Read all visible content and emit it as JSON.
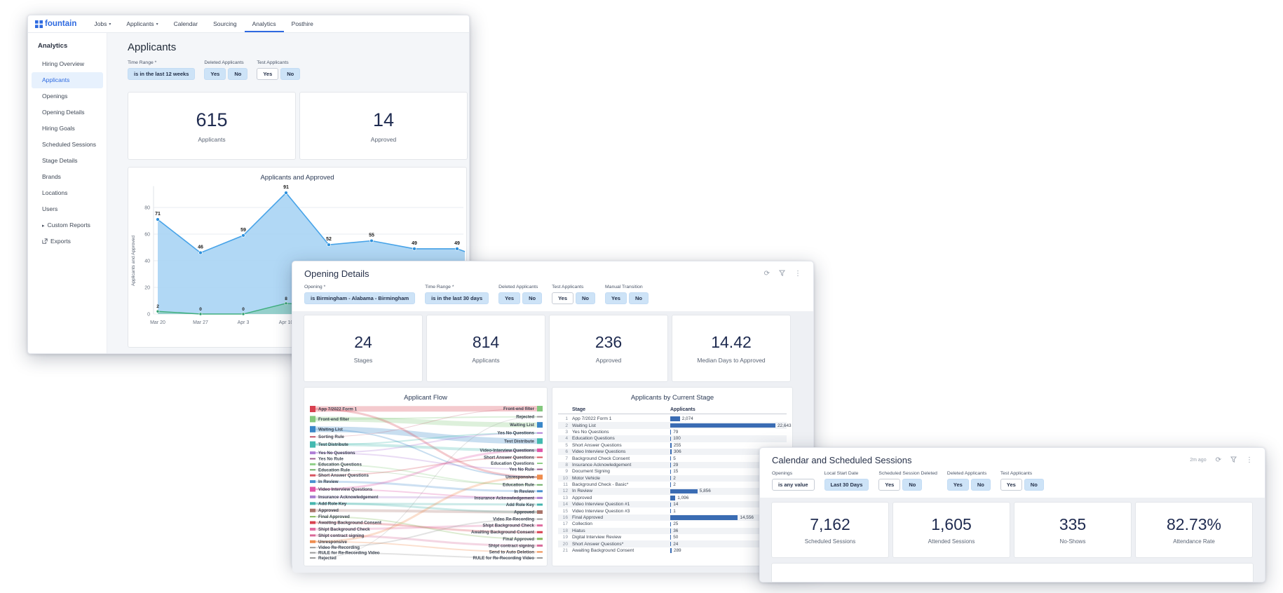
{
  "app_window": {
    "brand": "fountain",
    "nav_items": [
      {
        "label": "Jobs",
        "caret": true,
        "active": false
      },
      {
        "label": "Applicants",
        "caret": true,
        "active": false
      },
      {
        "label": "Calendar",
        "caret": false,
        "active": false
      },
      {
        "label": "Sourcing",
        "caret": false,
        "active": false
      },
      {
        "label": "Analytics",
        "caret": false,
        "active": true
      },
      {
        "label": "Posthire",
        "caret": false,
        "active": false
      }
    ],
    "sidebar": {
      "title": "Analytics",
      "items": [
        "Hiring Overview",
        "Applicants",
        "Openings",
        "Opening Details",
        "Hiring Goals",
        "Scheduled Sessions",
        "Stage Details",
        "Brands",
        "Locations",
        "Users"
      ],
      "active_item": "Applicants",
      "custom_reports_label": "Custom Reports",
      "exports_label": "Exports"
    },
    "page_title": "Applicants",
    "filters": [
      {
        "label": "Time Range *",
        "buttons": [
          {
            "text": "is in the last 12 weeks",
            "variant": "blue"
          }
        ]
      },
      {
        "label": "Deleted Applicants",
        "buttons": [
          {
            "text": "Yes",
            "variant": "blue"
          },
          {
            "text": "No",
            "variant": "blue"
          }
        ]
      },
      {
        "label": "Test Applicants",
        "buttons": [
          {
            "text": "Yes",
            "variant": "white"
          },
          {
            "text": "No",
            "variant": "blue"
          }
        ]
      }
    ],
    "stats": [
      {
        "value": "615",
        "label": "Applicants"
      },
      {
        "value": "14",
        "label": "Approved"
      }
    ]
  },
  "opening_details_window": {
    "title": "Opening Details",
    "header_icons": [
      "refresh-icon",
      "filter-icon",
      "kebab-menu-icon"
    ],
    "filters": [
      {
        "label": "Opening *",
        "buttons": [
          {
            "text": "is Birmingham - Alabama - Birmingham",
            "variant": "blue"
          }
        ]
      },
      {
        "label": "Time Range *",
        "buttons": [
          {
            "text": "is in the last 30 days",
            "variant": "blue"
          }
        ]
      },
      {
        "label": "Deleted Applicants",
        "buttons": [
          {
            "text": "Yes",
            "variant": "blue"
          },
          {
            "text": "No",
            "variant": "blue"
          }
        ]
      },
      {
        "label": "Test Applicants",
        "buttons": [
          {
            "text": "Yes",
            "variant": "white"
          },
          {
            "text": "No",
            "variant": "blue"
          }
        ]
      },
      {
        "label": "Manual Transition",
        "buttons": [
          {
            "text": "Yes",
            "variant": "blue"
          },
          {
            "text": "No",
            "variant": "blue"
          }
        ]
      }
    ],
    "stats": [
      {
        "value": "24",
        "label": "Stages"
      },
      {
        "value": "814",
        "label": "Applicants"
      },
      {
        "value": "236",
        "label": "Approved"
      },
      {
        "value": "14.42",
        "label": "Median Days to Approved"
      }
    ]
  },
  "calendar_window": {
    "title": "Calendar and Scheduled Sessions",
    "updated": "2m ago",
    "header_icons": [
      "refresh-icon",
      "filter-icon",
      "kebab-menu-icon"
    ],
    "filters": [
      {
        "label": "Openings",
        "buttons": [
          {
            "text": "is any value",
            "variant": "white"
          }
        ]
      },
      {
        "label": "Local Start Date",
        "buttons": [
          {
            "text": "Last 30 Days",
            "variant": "blue"
          }
        ]
      },
      {
        "label": "Scheduled Session Deleted",
        "buttons": [
          {
            "text": "Yes",
            "variant": "white"
          },
          {
            "text": "No",
            "variant": "blue"
          }
        ]
      },
      {
        "label": "Deleted Applicants",
        "buttons": [
          {
            "text": "Yes",
            "variant": "blue"
          },
          {
            "text": "No",
            "variant": "blue"
          }
        ]
      },
      {
        "label": "Test Applicants",
        "buttons": [
          {
            "text": "Yes",
            "variant": "white"
          },
          {
            "text": "No",
            "variant": "blue"
          }
        ]
      }
    ],
    "stats": [
      {
        "value": "7,162",
        "label": "Scheduled Sessions"
      },
      {
        "value": "1,605",
        "label": "Attended Sessions"
      },
      {
        "value": "335",
        "label": "No-Shows"
      },
      {
        "value": "82.73%",
        "label": "Attendance Rate"
      }
    ]
  },
  "chart_data": [
    {
      "type": "area",
      "title": "Applicants and Approved",
      "ylabel": "Applicants and Approved",
      "x_labels": [
        "Mar 20",
        "Mar 27",
        "Apr 3",
        "Apr 10",
        "",
        "",
        "",
        ""
      ],
      "yticks": [
        0,
        20,
        40,
        60,
        80
      ],
      "ylim": [
        0,
        96
      ],
      "grid": true,
      "series": [
        {
          "name": "Applicants",
          "color": "#47a3e8",
          "fill": "#a9d4f4",
          "values": [
            71,
            46,
            59,
            91,
            52,
            55,
            49,
            49
          ]
        },
        {
          "name": "Approved",
          "color": "#3fae7e",
          "fill": "#7cc9a8",
          "values": [
            2,
            0,
            0,
            8
          ]
        }
      ]
    },
    {
      "type": "sankey",
      "title": "Applicant Flow",
      "left": [
        {
          "label": "App 7/2022 Form 1",
          "color": "#d8404f",
          "size": 9
        },
        {
          "label": "Front-end filter",
          "color": "#84c87e",
          "size": 9
        },
        {
          "label": "Waiting List",
          "color": "#3a87c8",
          "size": 9
        },
        {
          "label": "Sorting Rule",
          "color": "#c2556b",
          "size": 2
        },
        {
          "label": "Test Distribute",
          "color": "#43b9b0",
          "size": 9
        },
        {
          "label": "Yes No Questions",
          "color": "#b07fd6",
          "size": 4
        },
        {
          "label": "Yes No Rule",
          "color": "#9c5f8f",
          "size": 2
        },
        {
          "label": "Education Questions",
          "color": "#8fcf88",
          "size": 3
        },
        {
          "label": "Education Rule",
          "color": "#6fae68",
          "size": 2
        },
        {
          "label": "Short Answer Questions",
          "color": "#d85560",
          "size": 3
        },
        {
          "label": "In Review",
          "color": "#4a90d0",
          "size": 4
        },
        {
          "label": "Video Interview Questions",
          "color": "#e055a8",
          "size": 7
        },
        {
          "label": "Insurance Acknowledgement",
          "color": "#a97fd0",
          "size": 4
        },
        {
          "label": "Add Role Key",
          "color": "#45b5ad",
          "size": 4
        },
        {
          "label": "Approved",
          "color": "#a9746a",
          "size": 5
        },
        {
          "label": "Final Approved",
          "color": "#86b95e",
          "size": 2
        },
        {
          "label": "Awaiting Background Consent",
          "color": "#d8404f",
          "size": 4
        },
        {
          "label": "Shipt Background Check",
          "color": "#e06ba0",
          "size": 4
        },
        {
          "label": "Shipt contract signing",
          "color": "#d96a9a",
          "size": 3
        },
        {
          "label": "Unresponsive",
          "color": "#ef8d4e",
          "size": 4
        },
        {
          "label": "Video Re-Recording",
          "color": "#999999",
          "size": 2
        },
        {
          "label": "RULE for Re-Recording Video",
          "color": "#999999",
          "size": 2
        },
        {
          "label": "Rejected",
          "color": "#999999",
          "size": 2
        }
      ],
      "right": [
        {
          "label": "Front-end filter",
          "color": "#84c87e",
          "size": 8
        },
        {
          "label": "Rejected",
          "color": "#999999",
          "size": 2
        },
        {
          "label": "Waiting List",
          "color": "#3a87c8",
          "size": 8
        },
        {
          "label": "Yes No Questions",
          "color": "#b07fd6",
          "size": 2
        },
        {
          "label": "Test Distribute",
          "color": "#43b9b0",
          "size": 8
        },
        {
          "label": "Video-Interview Questions",
          "color": "#e055a8",
          "size": 5
        },
        {
          "label": "Short Answer Questions",
          "color": "#d85560",
          "size": 2
        },
        {
          "label": "Education Questions",
          "color": "#8fcf88",
          "size": 2
        },
        {
          "label": "Yes No Rule",
          "color": "#9c5f8f",
          "size": 2
        },
        {
          "label": "Unresponsive",
          "color": "#ef8d4e",
          "size": 7
        },
        {
          "label": "Education Rule",
          "color": "#6fae68",
          "size": 2
        },
        {
          "label": "In Review",
          "color": "#4a90d0",
          "size": 3
        },
        {
          "label": "Insurance Acknowledgement",
          "color": "#a97fd0",
          "size": 3
        },
        {
          "label": "Add Role Key",
          "color": "#45b5ad",
          "size": 3
        },
        {
          "label": "Approved",
          "color": "#a9746a",
          "size": 5
        },
        {
          "label": "Video Re-Recording",
          "color": "#999999",
          "size": 2
        },
        {
          "label": "Shipt Background Check",
          "color": "#e06ba0",
          "size": 3
        },
        {
          "label": "Awaiting Background Consent",
          "color": "#d8404f",
          "size": 3
        },
        {
          "label": "Final Approved",
          "color": "#86b95e",
          "size": 3
        },
        {
          "label": "Shipt contract signing",
          "color": "#d96a9a",
          "size": 3
        },
        {
          "label": "Send to Auto Deletion",
          "color": "#ef8d4e",
          "size": 2
        },
        {
          "label": "RULE for Re-Recording Video",
          "color": "#999999",
          "size": 2
        }
      ],
      "links": [
        [
          0,
          0,
          8
        ],
        [
          1,
          2,
          7
        ],
        [
          2,
          4,
          8
        ],
        [
          0,
          9,
          3
        ],
        [
          1,
          1,
          2
        ],
        [
          4,
          5,
          4
        ],
        [
          2,
          9,
          2
        ],
        [
          5,
          8,
          2
        ],
        [
          7,
          10,
          2
        ],
        [
          9,
          6,
          2
        ],
        [
          10,
          11,
          3
        ],
        [
          11,
          5,
          3
        ],
        [
          11,
          12,
          2
        ],
        [
          12,
          12,
          3
        ],
        [
          13,
          13,
          3
        ],
        [
          13,
          14,
          3
        ],
        [
          14,
          14,
          4
        ],
        [
          16,
          17,
          3
        ],
        [
          17,
          16,
          3
        ],
        [
          18,
          19,
          3
        ],
        [
          19,
          20,
          2
        ],
        [
          19,
          9,
          3
        ],
        [
          15,
          18,
          2
        ],
        [
          20,
          15,
          2
        ],
        [
          21,
          21,
          2
        ],
        [
          5,
          3,
          2
        ],
        [
          4,
          3,
          2
        ],
        [
          8,
          10,
          1
        ],
        [
          3,
          0,
          1
        ],
        [
          22,
          1,
          1
        ]
      ]
    },
    {
      "type": "bar",
      "title": "Applicants by Current Stage",
      "headers": [
        "Stage",
        "Applicants"
      ],
      "xmax": 22643,
      "rows": [
        [
          "App 7/2022 Form 1",
          "2,074"
        ],
        [
          "Waiting List",
          "22,643"
        ],
        [
          "Yes No Questions",
          "79"
        ],
        [
          "Education Questions",
          "100"
        ],
        [
          "Short Answer Questions",
          "255"
        ],
        [
          "Video Interview Questions",
          "306"
        ],
        [
          "Background Check Consent",
          "5"
        ],
        [
          "Insurance Acknowledgement",
          "29"
        ],
        [
          "Document Signing",
          "15"
        ],
        [
          "Motor Vehicle",
          "2"
        ],
        [
          "Background Check - Basic*",
          "2"
        ],
        [
          "In Review",
          "5,856"
        ],
        [
          "Approved",
          "1,096"
        ],
        [
          "Video Interview Question #1",
          "14"
        ],
        [
          "Video Interview Question #3",
          "1"
        ],
        [
          "Final Approved",
          "14,556"
        ],
        [
          "Collection",
          "25"
        ],
        [
          "Hiatus",
          "36"
        ],
        [
          "Digital Interview Review",
          "50"
        ],
        [
          "Short Answer Questions*",
          "24"
        ],
        [
          "Awaiting Background Consent",
          "289"
        ]
      ]
    }
  ]
}
